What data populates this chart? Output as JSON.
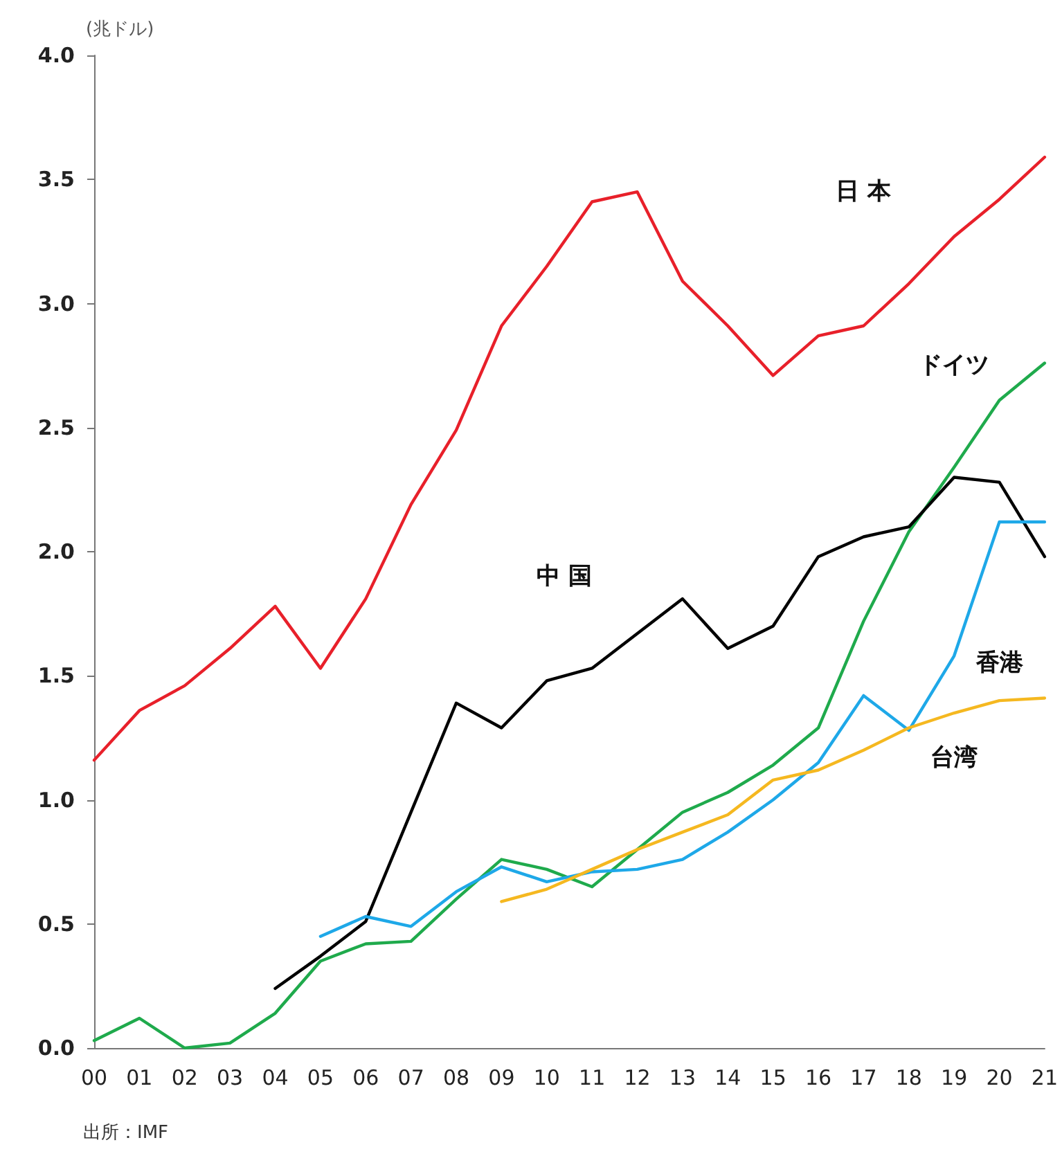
{
  "chart_data": {
    "type": "line",
    "ylabel": "(兆ドル)",
    "categories": [
      "00",
      "01",
      "02",
      "03",
      "04",
      "05",
      "06",
      "07",
      "08",
      "09",
      "10",
      "11",
      "12",
      "13",
      "14",
      "15",
      "16",
      "17",
      "18",
      "19",
      "20",
      "21"
    ],
    "series": [
      {
        "name": "日 本",
        "color": "#e8202a",
        "values": [
          1.16,
          1.36,
          1.46,
          1.61,
          1.78,
          1.53,
          1.81,
          2.19,
          2.49,
          2.91,
          3.15,
          3.41,
          3.45,
          3.09,
          2.91,
          2.71,
          2.87,
          2.91,
          3.08,
          3.27,
          3.42,
          3.59
        ]
      },
      {
        "name": "ドイツ",
        "color": "#1faa4c",
        "values": [
          0.03,
          0.12,
          0.0,
          0.02,
          0.14,
          0.35,
          0.42,
          0.43,
          0.6,
          0.76,
          0.72,
          0.65,
          0.8,
          0.95,
          1.03,
          1.14,
          1.29,
          1.72,
          2.08,
          2.34,
          2.61,
          2.76
        ]
      },
      {
        "name": "中 国",
        "color": "#000000",
        "values": [
          null,
          null,
          null,
          null,
          0.24,
          0.37,
          0.51,
          0.95,
          1.39,
          1.29,
          1.48,
          1.53,
          1.67,
          1.81,
          1.61,
          1.7,
          1.98,
          2.06,
          2.1,
          2.3,
          2.28,
          1.98
        ]
      },
      {
        "name": "香港",
        "color": "#1ea8e8",
        "values": [
          null,
          null,
          null,
          null,
          null,
          0.45,
          0.53,
          0.49,
          0.63,
          0.73,
          0.67,
          0.71,
          0.72,
          0.76,
          0.87,
          1.0,
          1.15,
          1.42,
          1.28,
          1.58,
          2.12,
          2.12
        ]
      },
      {
        "name": "台湾",
        "color": "#f5b820",
        "values": [
          null,
          null,
          null,
          null,
          null,
          null,
          null,
          null,
          null,
          0.59,
          0.64,
          0.72,
          0.8,
          0.87,
          0.94,
          1.08,
          1.12,
          1.2,
          1.29,
          1.35,
          1.4,
          1.41
        ]
      }
    ],
    "ylim": [
      0,
      4
    ],
    "yticks": [
      {
        "value": 0,
        "label": "0.0"
      },
      {
        "value": 0.5,
        "label": "0.5"
      },
      {
        "value": 1,
        "label": "1.0"
      },
      {
        "value": 1.5,
        "label": "1.5"
      },
      {
        "value": 2,
        "label": "2.0"
      },
      {
        "value": 2.5,
        "label": "2.5"
      },
      {
        "value": 3,
        "label": "3.0"
      },
      {
        "value": 3.5,
        "label": "3.5"
      },
      {
        "value": 4,
        "label": "4.0"
      }
    ],
    "grid": false,
    "legend": false,
    "marker": "none",
    "line_style": "solid",
    "annotations": [
      "出所：IMF"
    ]
  }
}
